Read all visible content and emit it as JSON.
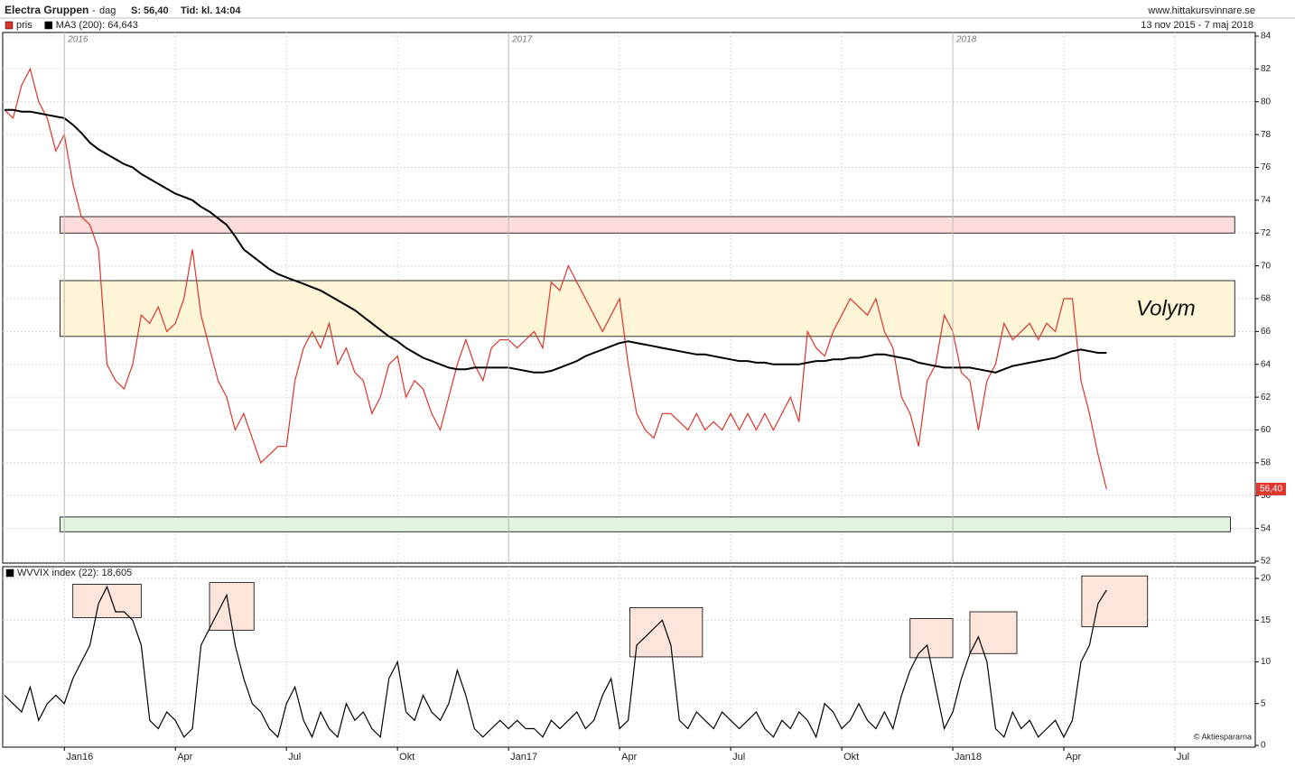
{
  "header": {
    "name": "Electra Gruppen",
    "sep": "-",
    "period": "dag",
    "last": "S: 56,40",
    "time": "Tid: kl. 14:04",
    "site": "www.hittakursvinnare.se",
    "range": "13 nov 2015 - 7 maj 2018"
  },
  "chart_data": [
    {
      "type": "line",
      "year_labels": [
        "2016",
        "2017",
        "2018"
      ],
      "annotation": "Volym",
      "last_value": {
        "value": 56.4,
        "label": "56,40"
      },
      "ylim": [
        52,
        84
      ],
      "yticks": [
        52,
        54,
        56,
        58,
        60,
        62,
        64,
        66,
        68,
        70,
        72,
        74,
        76,
        78,
        80,
        82,
        84
      ],
      "grid": true,
      "zones": [
        {
          "from": 72,
          "to": 73,
          "x": [
            6.5,
            144
          ],
          "color": "#fddcdc"
        },
        {
          "from": 65.7,
          "to": 69.1,
          "x": [
            6.5,
            144
          ],
          "color": "#fdf5d6"
        },
        {
          "from": 53.8,
          "to": 54.7,
          "x": [
            6.5,
            143.5
          ],
          "color": "#e3f5e0"
        }
      ],
      "series": [
        {
          "name": "pris",
          "color": "#d9342b",
          "values": [
            79.5,
            79,
            81,
            82,
            80,
            79,
            77,
            78,
            75,
            73,
            72.5,
            71,
            64,
            63,
            62.5,
            64,
            67,
            66.5,
            67.5,
            66,
            66.5,
            68,
            71,
            67,
            65,
            63,
            62,
            60,
            61,
            59.5,
            58,
            58.5,
            59,
            59,
            63,
            65,
            66,
            65,
            66.5,
            64,
            65,
            63.5,
            63,
            61,
            62,
            64,
            64.5,
            62,
            63,
            62.5,
            61,
            60,
            62,
            64,
            65.5,
            64,
            63,
            65,
            65.5,
            65.5,
            65,
            65.5,
            66,
            65,
            69,
            68.5,
            70,
            69,
            68,
            67,
            66,
            67,
            68,
            64,
            61,
            60,
            59.5,
            61,
            61,
            60.5,
            60,
            61,
            60,
            60.5,
            60,
            61,
            60,
            61,
            60,
            61,
            60,
            61,
            62,
            60.5,
            66,
            65,
            64.5,
            66,
            67,
            68,
            67.5,
            67,
            68,
            66,
            65,
            62,
            61,
            59,
            63,
            64,
            67,
            66,
            63.5,
            63,
            60,
            63,
            64,
            66.5,
            65.5,
            66,
            66.5,
            65.5,
            66.5,
            66,
            68,
            68,
            63,
            61,
            58.5,
            56.4,
            null,
            null,
            null,
            null,
            null,
            null,
            null,
            null,
            null,
            null
          ]
        },
        {
          "name": "MA3 (200): 64,643",
          "color": "#000000",
          "values": [
            79.5,
            79.5,
            79.4,
            79.4,
            79.3,
            79.2,
            79.1,
            79.0,
            78.6,
            78.1,
            77.5,
            77.1,
            76.8,
            76.5,
            76.2,
            76.0,
            75.6,
            75.3,
            75.0,
            74.7,
            74.4,
            74.2,
            74.0,
            73.6,
            73.3,
            72.9,
            72.5,
            71.8,
            71.0,
            70.6,
            70.2,
            69.8,
            69.5,
            69.3,
            69.1,
            68.9,
            68.7,
            68.5,
            68.2,
            67.9,
            67.6,
            67.3,
            66.9,
            66.5,
            66.1,
            65.7,
            65.4,
            65.0,
            64.7,
            64.4,
            64.2,
            64.0,
            63.8,
            63.7,
            63.7,
            63.8,
            63.8,
            63.8,
            63.8,
            63.8,
            63.7,
            63.6,
            63.5,
            63.5,
            63.6,
            63.8,
            64.0,
            64.2,
            64.5,
            64.7,
            64.9,
            65.1,
            65.3,
            65.4,
            65.3,
            65.2,
            65.1,
            65.0,
            64.9,
            64.8,
            64.7,
            64.6,
            64.6,
            64.5,
            64.4,
            64.3,
            64.2,
            64.2,
            64.1,
            64.1,
            64.0,
            64.0,
            64.0,
            64.0,
            64.1,
            64.2,
            64.2,
            64.3,
            64.3,
            64.4,
            64.4,
            64.5,
            64.6,
            64.6,
            64.5,
            64.4,
            64.3,
            64.1,
            64.0,
            63.9,
            63.8,
            63.8,
            63.8,
            63.8,
            63.7,
            63.6,
            63.5,
            63.7,
            63.9,
            64.0,
            64.1,
            64.2,
            64.3,
            64.4,
            64.6,
            64.8,
            64.9,
            64.8,
            64.7,
            64.7,
            null,
            null,
            null,
            null,
            null,
            null,
            null,
            null,
            null,
            null
          ]
        }
      ]
    },
    {
      "type": "line",
      "credit": "© Aktiespararna",
      "categories": [
        null,
        null,
        null,
        null,
        null,
        null,
        null,
        "Jan16",
        null,
        null,
        null,
        null,
        null,
        null,
        null,
        null,
        null,
        null,
        null,
        null,
        "Apr",
        null,
        null,
        null,
        null,
        null,
        null,
        null,
        null,
        null,
        null,
        null,
        null,
        "Jul",
        null,
        null,
        null,
        null,
        null,
        null,
        null,
        null,
        null,
        null,
        null,
        null,
        "Okt",
        null,
        null,
        null,
        null,
        null,
        null,
        null,
        null,
        null,
        null,
        null,
        null,
        "Jan17",
        null,
        null,
        null,
        null,
        null,
        null,
        null,
        null,
        null,
        null,
        null,
        null,
        "Apr",
        null,
        null,
        null,
        null,
        null,
        null,
        null,
        null,
        null,
        null,
        null,
        null,
        "Jul",
        null,
        null,
        null,
        null,
        null,
        null,
        null,
        null,
        null,
        null,
        null,
        null,
        "Okt",
        null,
        null,
        null,
        null,
        null,
        null,
        null,
        null,
        null,
        null,
        null,
        null,
        "Jan18",
        null,
        null,
        null,
        null,
        null,
        null,
        null,
        null,
        null,
        null,
        null,
        null,
        "Apr",
        null,
        null,
        null,
        null,
        null,
        null,
        null,
        null,
        null,
        null,
        null,
        null,
        "Jul",
        null,
        null
      ],
      "ylim": [
        0,
        20
      ],
      "yticks": [
        0,
        5,
        10,
        15,
        20
      ],
      "grid": true,
      "highlights": [
        {
          "from": 15.3,
          "to": 19.3,
          "x": [
            8,
            16
          ]
        },
        {
          "from": 13.8,
          "to": 19.5,
          "x": [
            24,
            29.2
          ]
        },
        {
          "from": 10.6,
          "to": 16.5,
          "x": [
            73.2,
            81.7
          ]
        },
        {
          "from": 10.5,
          "to": 15.2,
          "x": [
            106,
            111
          ]
        },
        {
          "from": 11,
          "to": 16,
          "x": [
            113,
            118.5
          ]
        },
        {
          "from": 14.2,
          "to": 20.3,
          "x": [
            126.1,
            133.8
          ]
        }
      ],
      "series": [
        {
          "name": "WVVIX index (22): 18,605",
          "color": "#000000",
          "values": [
            6,
            5,
            4,
            7,
            3,
            5,
            6,
            5,
            8,
            10,
            12,
            17,
            19,
            16,
            16,
            15,
            12,
            3,
            2,
            4,
            3,
            1,
            2,
            12,
            14,
            16,
            18,
            12,
            8,
            5,
            4,
            2,
            1,
            5,
            7,
            3,
            1,
            4,
            2,
            1,
            5,
            3,
            4,
            2,
            1,
            8,
            10,
            4,
            3,
            6,
            4,
            3,
            5,
            9,
            6,
            2,
            1,
            2,
            3,
            2,
            3,
            2,
            2,
            1,
            3,
            2,
            3,
            4,
            2,
            3,
            6,
            8,
            2,
            3,
            12,
            13,
            14,
            15,
            12,
            3,
            2,
            4,
            3,
            2,
            4,
            3,
            2,
            3,
            4,
            2,
            1,
            3,
            2,
            4,
            3,
            1,
            5,
            4,
            2,
            3,
            5,
            3,
            2,
            4,
            2,
            6,
            9,
            11,
            12,
            7,
            2,
            4,
            8,
            11,
            13,
            10,
            2,
            1,
            4,
            2,
            3,
            1,
            2,
            3,
            1,
            3,
            10,
            12,
            17,
            18.6,
            null,
            null,
            null,
            null,
            null,
            null,
            null,
            null,
            null,
            null
          ]
        }
      ]
    }
  ]
}
